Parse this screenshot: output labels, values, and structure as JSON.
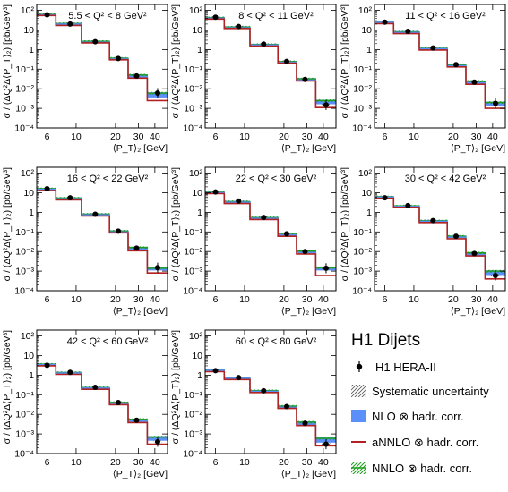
{
  "legend": {
    "title": "H1 Dijets",
    "entries": [
      {
        "key": "data",
        "label": "H1 HERA-II"
      },
      {
        "key": "syst",
        "label": "Systematic uncertainty"
      },
      {
        "key": "nlo",
        "label": "NLO ⊗ hadr. corr."
      },
      {
        "key": "annlo",
        "label": "aNNLO ⊗ hadr. corr."
      },
      {
        "key": "nnlo",
        "label": "NNLO ⊗ hadr. corr."
      }
    ]
  },
  "colors": {
    "nlo": "#5b8ff9",
    "annlo": "#b22222",
    "nnlo": "#1a9e1a",
    "data": "#000000",
    "syst": "#555555"
  },
  "chart_data": {
    "type": "histogram",
    "xlabel": "⟨P_T⟩₂ [GeV]",
    "ylabel": "σ / (ΔQ²Δ⟨P_T⟩₂) [pb/GeV³]",
    "log_x": true,
    "log_y": true,
    "xlim": [
      5,
      50
    ],
    "ylim": [
      0.0001,
      200
    ],
    "x_ticks": [
      "6",
      "10",
      "20",
      "30",
      "40"
    ],
    "y_ticks": [
      "10⁻⁴",
      "10⁻³",
      "10⁻²",
      "10⁻¹",
      "1",
      "10",
      "10²"
    ],
    "bin_edges": [
      5,
      7,
      11,
      18,
      25,
      35,
      50
    ],
    "bin_centers": [
      6,
      9,
      14,
      21,
      29,
      42
    ],
    "panels": [
      {
        "label": "5.5 < Q² < 8 GeV²",
        "data": [
          60,
          20,
          2.5,
          0.35,
          0.045,
          0.006
        ],
        "nlo": [
          60,
          20,
          2.4,
          0.33,
          0.042,
          0.004
        ],
        "annlo": [
          55,
          17,
          2.2,
          0.3,
          0.035,
          0.0025
        ],
        "nnlo": [
          62,
          21,
          2.6,
          0.36,
          0.05,
          0.006
        ]
      },
      {
        "label": "8 < Q² < 11 GeV²",
        "data": [
          45,
          15,
          1.9,
          0.25,
          0.03,
          0.0015
        ],
        "nlo": [
          40,
          13,
          1.7,
          0.22,
          0.028,
          0.0018
        ],
        "annlo": [
          36,
          12,
          1.5,
          0.2,
          0.025,
          0.0011
        ],
        "nnlo": [
          42,
          14,
          1.8,
          0.24,
          0.032,
          0.0025
        ]
      },
      {
        "label": "11 < Q² < 16 GeV²",
        "data": [
          25,
          8.5,
          1.2,
          0.17,
          0.022,
          0.0018
        ],
        "nlo": [
          25,
          7.5,
          1.1,
          0.15,
          0.02,
          0.0015
        ],
        "annlo": [
          21,
          6.5,
          0.95,
          0.13,
          0.017,
          0.001
        ],
        "nnlo": [
          26,
          8.0,
          1.15,
          0.17,
          0.024,
          0.002
        ]
      },
      {
        "label": "16 < Q² < 22 GeV²",
        "data": [
          16,
          5.5,
          0.8,
          0.11,
          0.015,
          0.0015
        ],
        "nlo": [
          15,
          5.0,
          0.75,
          0.1,
          0.013,
          0.0012
        ],
        "annlo": [
          13,
          4.3,
          0.65,
          0.09,
          0.011,
          0.0008
        ],
        "nnlo": [
          16,
          5.3,
          0.8,
          0.11,
          0.016,
          0.0014
        ]
      },
      {
        "label": "22 < Q² < 30 GeV²",
        "data": [
          11,
          3.8,
          0.55,
          0.08,
          0.01,
          0.0014
        ],
        "nlo": [
          10,
          3.3,
          0.5,
          0.07,
          0.009,
          0.0012
        ],
        "annlo": [
          9,
          2.8,
          0.43,
          0.06,
          0.0075,
          0.0006
        ],
        "nnlo": [
          10.5,
          3.5,
          0.53,
          0.075,
          0.0105,
          0.0015
        ]
      },
      {
        "label": "30 < Q² < 42 GeV²",
        "data": [
          5.5,
          2.2,
          0.38,
          0.06,
          0.008,
          0.0006
        ],
        "nlo": [
          6,
          2.0,
          0.35,
          0.055,
          0.007,
          0.0007
        ],
        "annlo": [
          5.2,
          1.8,
          0.3,
          0.045,
          0.006,
          0.0004
        ],
        "nnlo": [
          6.2,
          2.1,
          0.37,
          0.06,
          0.0085,
          0.001
        ]
      },
      {
        "label": "42 < Q² < 60 GeV²",
        "data": [
          3.2,
          1.4,
          0.24,
          0.04,
          0.005,
          0.0004
        ],
        "nlo": [
          3.5,
          1.3,
          0.22,
          0.037,
          0.0045,
          0.0005
        ],
        "annlo": [
          3.0,
          1.1,
          0.19,
          0.031,
          0.0038,
          0.0003
        ],
        "nnlo": [
          3.6,
          1.35,
          0.23,
          0.04,
          0.0055,
          0.0007
        ]
      },
      {
        "label": "60 < Q² < 80 GeV²",
        "data": [
          1.7,
          0.75,
          0.16,
          0.025,
          0.0035,
          0.0003
        ],
        "nlo": [
          1.8,
          0.7,
          0.15,
          0.023,
          0.0032,
          0.0004
        ],
        "annlo": [
          1.5,
          0.6,
          0.13,
          0.02,
          0.0027,
          0.00025
        ],
        "nnlo": [
          1.9,
          0.72,
          0.16,
          0.026,
          0.004,
          0.0006
        ]
      }
    ]
  }
}
